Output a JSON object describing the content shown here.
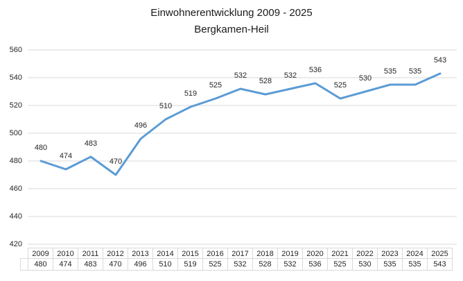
{
  "chart_data": {
    "type": "line",
    "title": "Einwohnerentwicklung 2009 - 2025",
    "subtitle": "Bergkamen-Heil",
    "categories": [
      "2009",
      "2010",
      "2011",
      "2012",
      "2013",
      "2014",
      "2015",
      "2016",
      "2017",
      "2018",
      "2019",
      "2020",
      "2021",
      "2022",
      "2023",
      "2024",
      "2025"
    ],
    "values": [
      480,
      474,
      483,
      470,
      496,
      510,
      519,
      525,
      532,
      528,
      532,
      536,
      525,
      530,
      535,
      535,
      543
    ],
    "yticks": [
      560,
      540,
      520,
      500,
      480,
      460,
      440,
      420
    ],
    "ylim": [
      420,
      560
    ],
    "xlabel": "",
    "ylabel": "",
    "grid": true,
    "legend_position": "none",
    "data_labels": true,
    "data_table": true,
    "colors": {
      "line": "#5B9BD5",
      "gridline": "#D9D9D9",
      "table_border": "#D9D9D9",
      "text": "#262626",
      "title_text": "#1A1A1A"
    }
  }
}
